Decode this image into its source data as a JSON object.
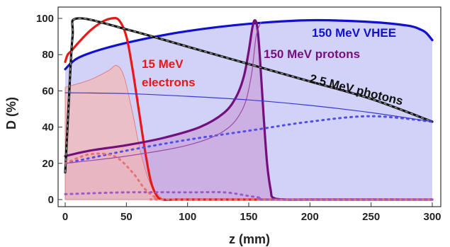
{
  "chart_data": {
    "type": "line",
    "xlabel": "z (mm)",
    "ylabel": "D (%)",
    "xlim": [
      0,
      300
    ],
    "ylim": [
      0,
      100
    ],
    "x_ticks": [
      0,
      50,
      100,
      150,
      200,
      250,
      300
    ],
    "y_ticks": [
      0,
      20,
      40,
      60,
      80,
      100
    ],
    "grid": false,
    "series": [
      {
        "name": "150 MeV VHEE",
        "color": "#1010d0",
        "style": "solid",
        "fill": "#b4b4f4",
        "x": [
          0,
          10,
          30,
          60,
          100,
          150,
          200,
          250,
          280,
          290,
          295,
          300
        ],
        "y": [
          72,
          78,
          83,
          88,
          93,
          97,
          99,
          98,
          96,
          94,
          92,
          88
        ]
      },
      {
        "name": "15 MeV electrons",
        "color": "#e81818",
        "style": "solid",
        "x": [
          0,
          2,
          5,
          10,
          20,
          30,
          38,
          44,
          50,
          55,
          60,
          65,
          70,
          75,
          80,
          90,
          100,
          150,
          200,
          300
        ],
        "y": [
          76,
          80,
          82,
          86,
          93,
          98,
          100,
          99,
          90,
          72,
          50,
          28,
          10,
          2,
          0,
          0,
          0,
          0,
          0,
          0
        ]
      },
      {
        "name": "150 MeV protons",
        "color": "#74107e",
        "style": "solid",
        "fill": "#c89ad6",
        "x": [
          0,
          20,
          50,
          80,
          110,
          130,
          140,
          146,
          150,
          153,
          155,
          157,
          159,
          162,
          165,
          168,
          170,
          180,
          200,
          300
        ],
        "y": [
          24,
          27,
          30,
          34,
          40,
          48,
          57,
          68,
          82,
          95,
          99,
          95,
          80,
          48,
          20,
          5,
          1,
          0,
          0,
          0
        ]
      },
      {
        "name": "2.5 MeV photons",
        "color": "#111111",
        "style": "solid",
        "x": [
          0,
          3,
          6,
          10,
          50,
          100,
          150,
          200,
          250,
          300
        ],
        "y": [
          15,
          55,
          90,
          100,
          94,
          84.4,
          74.8,
          65.2,
          55.6,
          43
        ]
      },
      {
        "color": "#5050e8",
        "style": "dotted",
        "x": [
          0,
          50,
          100,
          150,
          200,
          250,
          300
        ],
        "y": [
          20,
          27,
          33,
          38,
          43,
          46,
          43
        ]
      },
      {
        "color": "#e87070",
        "style": "dotted",
        "x": [
          0,
          20,
          40,
          55,
          65,
          75,
          90,
          300
        ],
        "y": [
          20,
          25,
          24,
          15,
          6,
          1,
          0,
          0
        ]
      },
      {
        "color": "#9a5ac8",
        "style": "dotted",
        "x": [
          0,
          50,
          100,
          130,
          150,
          160,
          170,
          300
        ],
        "y": [
          3,
          4,
          4,
          4,
          2,
          1,
          0,
          0
        ]
      },
      {
        "color": "#f2b8b8",
        "style": "area",
        "x": [
          0,
          20,
          35,
          42,
          48,
          55,
          62,
          70,
          80
        ],
        "y": [
          62,
          66,
          71,
          74,
          68,
          48,
          25,
          8,
          0
        ]
      },
      {
        "color": "#9a4aa8",
        "style": "thin",
        "x": [
          0,
          50,
          100,
          130,
          145,
          152,
          156,
          160
        ],
        "y": [
          20,
          24,
          30,
          38,
          50,
          68,
          90,
          98
        ]
      },
      {
        "color": "#3a3ad8",
        "style": "thin",
        "x": [
          0,
          50,
          100,
          150,
          200,
          250,
          300
        ],
        "y": [
          59,
          58.5,
          57,
          55,
          52,
          48,
          43
        ]
      }
    ],
    "annotations": [
      {
        "text": "150 MeV VHEE",
        "color": "#1010d0"
      },
      {
        "text": "15 MeV",
        "color": "#e81818"
      },
      {
        "text": "electrons",
        "color": "#e81818"
      },
      {
        "text": "150 MeV protons",
        "color": "#74107e"
      },
      {
        "text": "2.5 MeV photons",
        "color": "#111111"
      }
    ]
  }
}
